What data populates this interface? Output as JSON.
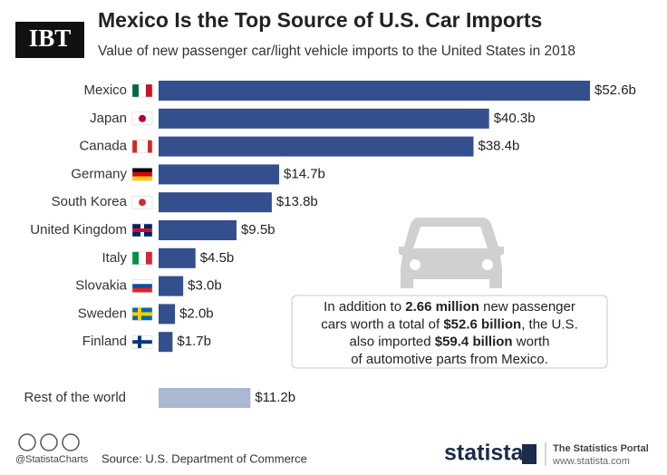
{
  "logo": "IBT",
  "chart_data": {
    "type": "bar",
    "orientation": "horizontal",
    "title": "Mexico Is the Top Source of U.S. Car Imports",
    "subtitle": "Value of new passenger car/light vehicle imports to the United States in 2018",
    "categories": [
      "Mexico",
      "Japan",
      "Canada",
      "Germany",
      "South Korea",
      "United Kingdom",
      "Italy",
      "Slovakia",
      "Sweden",
      "Finland",
      "Rest of the world"
    ],
    "values": [
      52.6,
      40.3,
      38.4,
      14.7,
      13.8,
      9.5,
      4.5,
      3.0,
      2.0,
      1.7,
      11.2
    ],
    "value_labels": [
      "$52.6b",
      "$40.3b",
      "$38.4b",
      "$14.7b",
      "$13.8b",
      "$9.5b",
      "$4.5b",
      "$3.0b",
      "$2.0b",
      "$1.7b",
      "$11.2b"
    ],
    "colors": [
      "#344f8e",
      "#344f8e",
      "#344f8e",
      "#344f8e",
      "#344f8e",
      "#344f8e",
      "#344f8e",
      "#344f8e",
      "#344f8e",
      "#344f8e",
      "#a9b8d3"
    ],
    "annotation": [
      [
        {
          "text": "In addition to ",
          "bold": false
        },
        {
          "text": "2.66 million",
          "bold": true
        },
        {
          "text": " new passenger",
          "bold": false
        }
      ],
      [
        {
          "text": "cars worth a total of ",
          "bold": false
        },
        {
          "text": "$52.6 billion",
          "bold": true
        },
        {
          "text": ", the U.S.",
          "bold": false
        }
      ],
      [
        {
          "text": "also imported ",
          "bold": false
        },
        {
          "text": "$59.4 billion",
          "bold": true
        },
        {
          "text": " worth",
          "bold": false
        }
      ],
      [
        {
          "text": "of automotive parts from Mexico.",
          "bold": false
        }
      ]
    ]
  },
  "footer": {
    "handle": "@StatistaCharts",
    "source": "Source: U.S. Department of Commerce",
    "brand": "statista",
    "tagline": "The Statistics Portal",
    "url": "www.statista.com"
  }
}
